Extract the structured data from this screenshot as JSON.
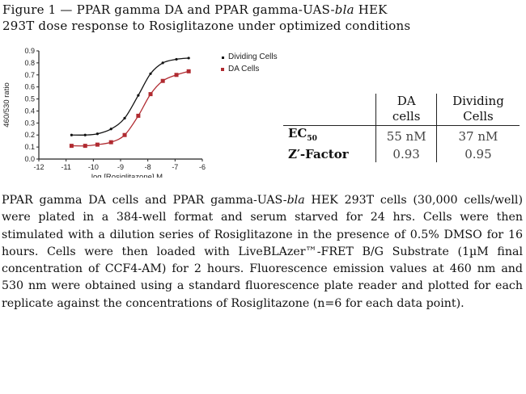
{
  "figure": {
    "title_line1_a": "Figure 1 — PPAR gamma DA and PPAR gamma-UAS-",
    "title_line1_italic": "bla",
    "title_line1_b": " HEK",
    "title_line2": "293T dose response to Rosiglitazone under optimized conditions"
  },
  "legend": {
    "items": [
      {
        "label": "Dividing Cells",
        "color": "#111111",
        "marker": "dot"
      },
      {
        "label": "DA Cells",
        "color": "#b02a30",
        "marker": "square"
      }
    ]
  },
  "table": {
    "headers": [
      {
        "line1": "",
        "line2": ""
      },
      {
        "line1": "DA",
        "line2": "cells"
      },
      {
        "line1": "Dividing",
        "line2": "Cells"
      }
    ],
    "rows": [
      {
        "label": "EC",
        "label_sub": "50",
        "values": [
          "55 nM",
          "37 nM"
        ]
      },
      {
        "label": "Z′-Factor",
        "label_sub": "",
        "values": [
          "0.93",
          "0.95"
        ]
      }
    ]
  },
  "caption": {
    "part1": "PPAR gamma DA cells and PPAR gamma-UAS-",
    "italic": "bla",
    "part2": " HEK 293T cells (30,000 cells/well) were plated in a 384-well format and serum starved for 24 hrs. Cells were then stimulated with a dilution series of Rosiglitazone in the presence of 0.5% DMSO for 16 hours. Cells were then loaded with LiveBLAzer™-FRET B/G Substrate (1µM final concentration of CCF4-AM) for 2 hours. Fluorescence emission values at 460 nm and 530 nm were obtained using a standard fluorescence plate reader and plotted for each replicate against the concentrations of Rosiglitazone (n=6 for each data point)."
  },
  "chart_data": {
    "type": "line",
    "title": "",
    "xlabel": "log [Rosiglitazone] M",
    "ylabel": "460/530 ratio",
    "xlim": [
      -12,
      -6
    ],
    "ylim": [
      0.0,
      0.9
    ],
    "xticks": [
      -12,
      -11,
      -10,
      -9,
      -8,
      -7,
      -6
    ],
    "yticks": [
      0.0,
      0.1,
      0.2,
      0.3,
      0.4,
      0.5,
      0.6,
      0.7,
      0.8,
      0.9
    ],
    "ytick_labels": [
      "0.0",
      "0.1",
      "0.2",
      "0.3",
      "0.4",
      "0.5",
      "0.6",
      "0.7",
      "0.8",
      "0.9"
    ],
    "grid": false,
    "legend_position": "right",
    "x": [
      -10.8,
      -10.3,
      -9.85,
      -9.35,
      -8.85,
      -8.35,
      -7.9,
      -7.45,
      -6.95,
      -6.5
    ],
    "series": [
      {
        "name": "Dividing Cells",
        "color": "#111111",
        "marker": "dot",
        "values": [
          0.2,
          0.2,
          0.21,
          0.25,
          0.34,
          0.53,
          0.71,
          0.8,
          0.83,
          0.84
        ]
      },
      {
        "name": "DA Cells",
        "color": "#b02a30",
        "marker": "square",
        "values": [
          0.11,
          0.11,
          0.12,
          0.14,
          0.2,
          0.36,
          0.54,
          0.65,
          0.7,
          0.73
        ]
      }
    ]
  }
}
